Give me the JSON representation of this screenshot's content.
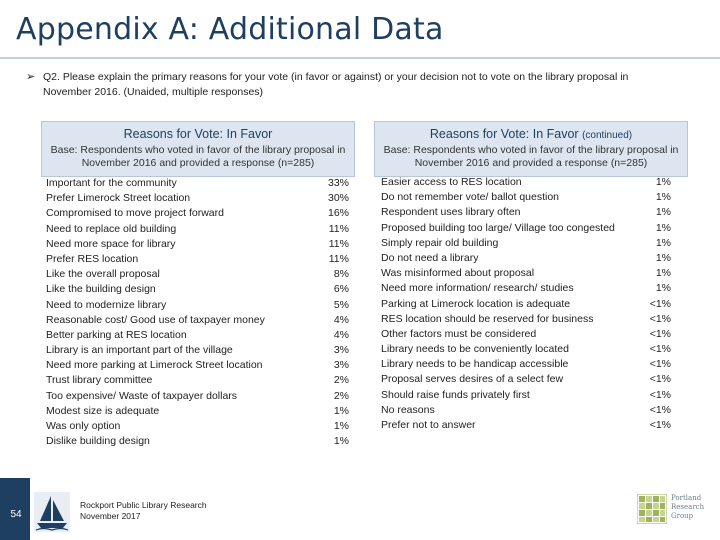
{
  "slide": {
    "title": "Appendix A: Additional Data",
    "question_bullet": "➢",
    "question": "Q2. Please explain the primary reasons for your vote (in favor or against) or your decision not to vote on the library proposal in November 2016. (Unaided, multiple responses)"
  },
  "left_panel": {
    "title": "Reasons for Vote: In Favor",
    "base": "Base: Respondents who voted in favor of the library proposal in November 2016 and provided a response (n=285)",
    "rows": [
      {
        "label": "Important for the community",
        "value": "33%"
      },
      {
        "label": "Prefer Limerock Street location",
        "value": "30%"
      },
      {
        "label": "Compromised to move project forward",
        "value": "16%"
      },
      {
        "label": "Need to replace old building",
        "value": "11%"
      },
      {
        "label": "Need more space for library",
        "value": "11%"
      },
      {
        "label": "Prefer RES location",
        "value": "11%"
      },
      {
        "label": "Like the overall proposal",
        "value": "8%"
      },
      {
        "label": "Like the building design",
        "value": "6%"
      },
      {
        "label": "Need to modernize library",
        "value": "5%"
      },
      {
        "label": "Reasonable cost/ Good use of taxpayer money",
        "value": "4%"
      },
      {
        "label": "Better parking at RES location",
        "value": "4%"
      },
      {
        "label": "Library is an important part of the village",
        "value": "3%"
      },
      {
        "label": "Need more parking at Limerock Street location",
        "value": "3%"
      },
      {
        "label": "Trust library committee",
        "value": "2%"
      },
      {
        "label": "Too expensive/ Waste of taxpayer dollars",
        "value": "2%"
      },
      {
        "label": "Modest size is adequate",
        "value": "1%"
      },
      {
        "label": "Was only option",
        "value": "1%"
      },
      {
        "label": "Dislike building design",
        "value": "1%"
      }
    ]
  },
  "right_panel": {
    "title": "Reasons for Vote: In Favor",
    "title_suffix": "(continued)",
    "base": "Base: Respondents who voted in favor of the library proposal in November 2016 and provided a response (n=285)",
    "rows": [
      {
        "label": "Easier access to RES location",
        "value": "1%"
      },
      {
        "label": "Do not remember vote/ ballot question",
        "value": "1%"
      },
      {
        "label": "Respondent uses library often",
        "value": "1%"
      },
      {
        "label": "Proposed building too large/ Village too congested",
        "value": "1%"
      },
      {
        "label": "Simply repair old building",
        "value": "1%"
      },
      {
        "label": "Do not need a library",
        "value": "1%"
      },
      {
        "label": "Was misinformed about proposal",
        "value": "1%"
      },
      {
        "label": "Need more information/ research/ studies",
        "value": "1%"
      },
      {
        "label": "Parking at Limerock location is adequate",
        "value": "<1%"
      },
      {
        "label": "RES location should be reserved for business",
        "value": "<1%"
      },
      {
        "label": "Other factors must be considered",
        "value": "<1%"
      },
      {
        "label": "Library needs to be conveniently located",
        "value": "<1%"
      },
      {
        "label": "Library needs to be handicap accessible",
        "value": "<1%"
      },
      {
        "label": "Proposal serves desires of a select few",
        "value": "<1%"
      },
      {
        "label": "Should raise funds privately first",
        "value": "<1%"
      },
      {
        "label": "No reasons",
        "value": "<1%"
      },
      {
        "label": "Prefer not to answer",
        "value": "<1%"
      }
    ]
  },
  "footer": {
    "page_number": "54",
    "line1": "Rockport Public Library Research",
    "line2": "November 2017",
    "logo_icon": "sailboat-icon",
    "brand_icon": "grid-squares-icon",
    "brand_line1": "Portland",
    "brand_line2": "Research",
    "brand_line3": "Group",
    "colors": {
      "navy": "#1f3f60",
      "panel_bg": "#dde6f0",
      "brand_green": "#9fb35a"
    }
  }
}
